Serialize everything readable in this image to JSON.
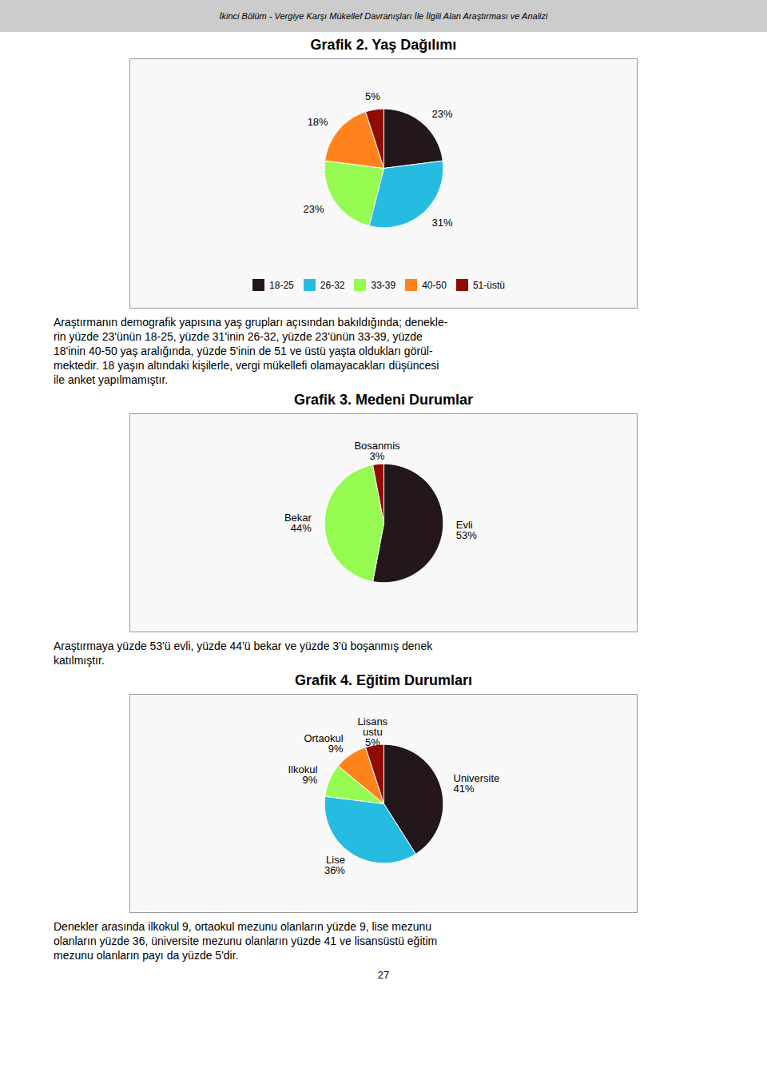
{
  "title": "İkinci Bölüm - Vergiye Karşı Mükellef Davranışları İle İlgili Alan Araştırması ve Analizi",
  "annotations": [
    "27"
  ],
  "chart_data": [
    {
      "type": "pie",
      "title": "Grafik 2. Yaş Dağılımı",
      "categories": [
        "18-25",
        "26-32",
        "33-39",
        "40-50",
        "51-üstü"
      ],
      "values": [
        23,
        31,
        23,
        18,
        5
      ],
      "value_labels": [
        "23%",
        "31%",
        "23%",
        "18%",
        "5%"
      ],
      "data_labels": true,
      "legend": "bottom",
      "annotations": [
        "Araştırmanın demografik yapısına yaş grupları açısından bakıldığında; denekle-",
        "rin yüzde 23'ünün 18-25, yüzde 31'inin 26-32, yüzde 23'ünün 33-39, yüzde",
        "18'inin 40-50 yaş aralığında, yüzde 5'inin de 51 ve üstü yaşta oldukları görül-",
        "mektedir. 18 yaşın altındaki kişilerle, vergi mükellefi olamayacakları düşüncesi",
        "ile anket yapılmamıştır."
      ]
    },
    {
      "type": "pie",
      "title": "Grafik 3. Medeni Durumlar",
      "categories": [
        "Evli",
        "Bekar",
        "Bosanmis"
      ],
      "values": [
        53,
        44,
        3
      ],
      "value_labels": [
        "53%",
        "44%",
        "3%"
      ],
      "data_labels": true,
      "annotations": [
        "Araştırmaya yüzde 53'ü evli, yüzde 44'ü bekar ve yüzde 3'ü boşanmış denek",
        "katılmıştır."
      ]
    },
    {
      "type": "pie",
      "title": "Grafik 4. Eğitim Durumları",
      "categories": [
        "Universite",
        "Lise",
        "Ilkokul",
        "Ortaokul",
        "Lisans\nustu"
      ],
      "values": [
        41,
        36,
        9,
        9,
        5
      ],
      "value_labels": [
        "41%",
        "36%",
        "9%",
        "9%",
        "5%"
      ],
      "data_labels": true,
      "annotations": [
        "Denekler arasında ilkokul 9, ortaokul mezunu olanların yüzde 9, lise mezunu",
        "olanların yüzde 36, üniversite mezunu olanların yüzde 41 ve lisansüstü eğitim",
        "mezunu olanların payı da yüzde 5'dir."
      ]
    }
  ]
}
